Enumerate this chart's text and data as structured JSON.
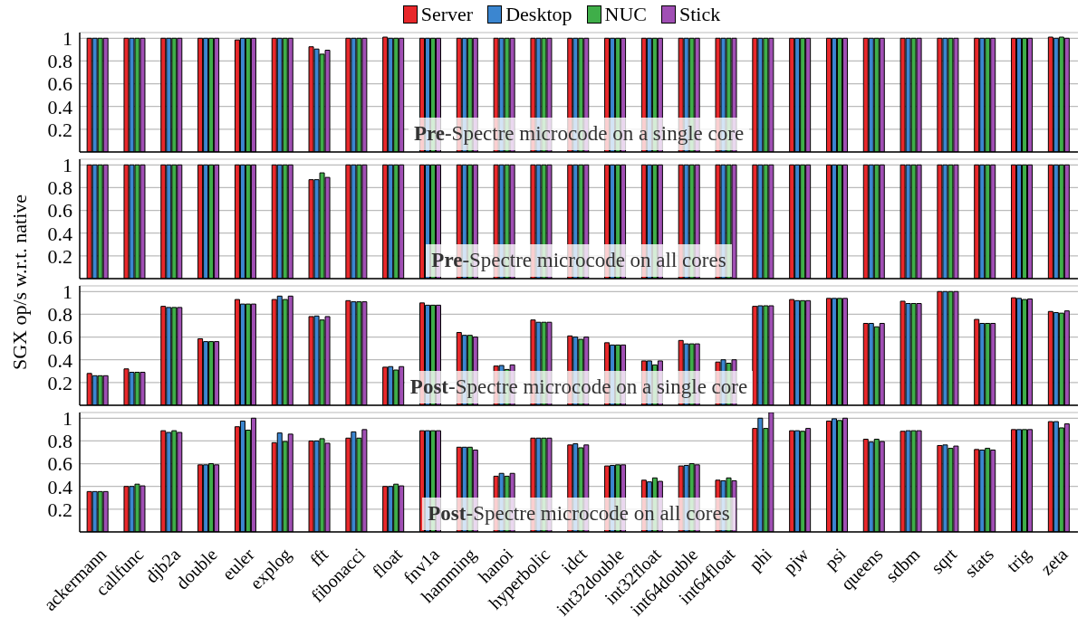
{
  "chart_data": [
    {
      "type": "bar",
      "title": "Pre-Spectre microcode on a single core",
      "ylabel": "SGX op/s w.r.t. native",
      "legend": "top",
      "grid": "y",
      "tick_labels": "y",
      "ylim": [
        0,
        1.05
      ],
      "yticks": [
        0.2,
        0.4,
        0.6,
        0.8,
        1
      ],
      "series": [
        {
          "name": "Server",
          "color": "#e8282b",
          "values": [
            1,
            1,
            1,
            1,
            0.985,
            1,
            0.925,
            1,
            1.01,
            1,
            1,
            1,
            1,
            1,
            1,
            1,
            1,
            1,
            1,
            1,
            1,
            1,
            1,
            1,
            1,
            1,
            1.01
          ]
        },
        {
          "name": "Desktop",
          "color": "#3b86d0",
          "values": [
            1,
            1,
            1,
            1,
            1,
            1,
            0.905,
            1,
            1,
            1,
            1,
            1,
            1,
            1,
            1,
            1,
            1,
            1,
            1,
            1,
            1,
            1,
            1,
            1,
            1,
            1,
            1
          ]
        },
        {
          "name": "NUC",
          "color": "#3fae49",
          "values": [
            1,
            1,
            1,
            1,
            1,
            1,
            0.86,
            1,
            1,
            1,
            1,
            1,
            1,
            1,
            1,
            1,
            1,
            1,
            1,
            1,
            1,
            1,
            1,
            1,
            1,
            1,
            1.01
          ]
        },
        {
          "name": "Stick",
          "color": "#a04fb4",
          "values": [
            1,
            1,
            1,
            1,
            1,
            1,
            0.895,
            1,
            1,
            1,
            1,
            1,
            1,
            1,
            1,
            1,
            1,
            1,
            1,
            1,
            1,
            1,
            1,
            1,
            1,
            1,
            1
          ]
        }
      ]
    },
    {
      "type": "bar",
      "title": "Pre-Spectre microcode on all cores",
      "grid": "y",
      "tick_labels": "y",
      "ylim": [
        0,
        1.05
      ],
      "yticks": [
        0.2,
        0.4,
        0.6,
        0.8,
        1
      ],
      "series": [
        {
          "color": "#e8282b",
          "values": [
            1,
            1,
            1,
            1,
            1,
            1,
            0.87,
            1,
            1,
            1,
            1,
            1,
            1,
            1,
            1,
            1,
            1,
            1,
            1,
            1,
            1,
            1,
            1,
            1,
            1,
            1,
            1
          ]
        },
        {
          "color": "#3b86d0",
          "values": [
            1,
            1,
            1,
            1,
            1,
            1,
            0.87,
            1,
            1,
            1,
            1,
            1,
            1,
            1,
            1,
            1,
            1,
            1,
            1,
            1,
            1,
            1,
            1,
            1,
            1,
            1,
            1
          ]
        },
        {
          "color": "#3fae49",
          "values": [
            1,
            1,
            1,
            1,
            1,
            1,
            0.93,
            1,
            1,
            1,
            1,
            1,
            1,
            1,
            1,
            1,
            1,
            1,
            1,
            1,
            1,
            1,
            1,
            1,
            1,
            1,
            1
          ]
        },
        {
          "color": "#a04fb4",
          "values": [
            1,
            1,
            1,
            1,
            1,
            1,
            0.89,
            1,
            1,
            1,
            1,
            1,
            1,
            1,
            1,
            1,
            1,
            1,
            1,
            1,
            1,
            1,
            1,
            1,
            1,
            1,
            1
          ]
        }
      ]
    },
    {
      "type": "bar",
      "title": "Post-Spectre microcode on a single core",
      "grid": "y",
      "tick_labels": "y",
      "ylim": [
        0,
        1.05
      ],
      "yticks": [
        0.2,
        0.4,
        0.6,
        0.8,
        1
      ],
      "series": [
        {
          "color": "#e8282b",
          "values": [
            0.28,
            0.32,
            0.87,
            0.585,
            0.93,
            0.93,
            0.78,
            0.92,
            0.335,
            0.9,
            0.64,
            0.345,
            0.75,
            0.61,
            0.55,
            0.39,
            0.57,
            0.38,
            0.87,
            0.93,
            0.94,
            0.72,
            0.915,
            1,
            0.755,
            0.945,
            0.825
          ]
        },
        {
          "color": "#3b86d0",
          "values": [
            0.26,
            0.29,
            0.86,
            0.56,
            0.89,
            0.96,
            0.785,
            0.91,
            0.34,
            0.88,
            0.615,
            0.35,
            0.73,
            0.6,
            0.53,
            0.39,
            0.54,
            0.4,
            0.875,
            0.92,
            0.94,
            0.72,
            0.895,
            1,
            0.72,
            0.94,
            0.815
          ]
        },
        {
          "color": "#3fae49",
          "values": [
            0.26,
            0.29,
            0.86,
            0.56,
            0.89,
            0.93,
            0.75,
            0.91,
            0.31,
            0.88,
            0.615,
            0.315,
            0.73,
            0.58,
            0.53,
            0.355,
            0.54,
            0.37,
            0.875,
            0.92,
            0.94,
            0.69,
            0.895,
            1,
            0.72,
            0.93,
            0.81
          ]
        },
        {
          "color": "#a04fb4",
          "values": [
            0.26,
            0.29,
            0.86,
            0.56,
            0.89,
            0.96,
            0.78,
            0.91,
            0.34,
            0.88,
            0.6,
            0.355,
            0.73,
            0.6,
            0.53,
            0.39,
            0.54,
            0.4,
            0.875,
            0.92,
            0.94,
            0.72,
            0.895,
            1,
            0.72,
            0.935,
            0.83
          ]
        }
      ]
    },
    {
      "type": "bar",
      "title": "Post-Spectre microcode on all cores",
      "grid": "y",
      "categories": [
        "ackermann",
        "callfunc",
        "djb2a",
        "double",
        "euler",
        "explog",
        "fft",
        "fibonacci",
        "float",
        "fnv1a",
        "hamming",
        "hanoi",
        "hyperbolic",
        "idct",
        "int32double",
        "int32float",
        "int64double",
        "int64float",
        "phi",
        "pjw",
        "psi",
        "queens",
        "sdbm",
        "sqrt",
        "stats",
        "trig",
        "zeta"
      ],
      "ylim": [
        0,
        1.05
      ],
      "yticks": [
        0.2,
        0.4,
        0.6,
        0.8,
        1
      ],
      "series": [
        {
          "color": "#e8282b",
          "values": [
            0.355,
            0.4,
            0.89,
            0.59,
            0.925,
            0.785,
            0.8,
            0.825,
            0.4,
            0.89,
            0.745,
            0.49,
            0.825,
            0.765,
            0.58,
            0.455,
            0.58,
            0.455,
            0.91,
            0.89,
            0.975,
            0.815,
            0.885,
            0.76,
            0.725,
            0.9,
            0.97
          ]
        },
        {
          "color": "#3b86d0",
          "values": [
            0.355,
            0.4,
            0.875,
            0.59,
            0.975,
            0.87,
            0.8,
            0.88,
            0.4,
            0.89,
            0.745,
            0.515,
            0.825,
            0.775,
            0.585,
            0.44,
            0.585,
            0.45,
            1,
            0.89,
            0.995,
            0.79,
            0.89,
            0.765,
            0.72,
            0.9,
            0.97
          ]
        },
        {
          "color": "#3fae49",
          "values": [
            0.355,
            0.42,
            0.89,
            0.6,
            0.895,
            0.795,
            0.82,
            0.825,
            0.42,
            0.89,
            0.745,
            0.49,
            0.825,
            0.74,
            0.59,
            0.475,
            0.6,
            0.475,
            0.91,
            0.885,
            0.98,
            0.815,
            0.89,
            0.735,
            0.735,
            0.9,
            0.915
          ]
        },
        {
          "color": "#a04fb4",
          "values": [
            0.355,
            0.405,
            0.875,
            0.59,
            1,
            0.86,
            0.78,
            0.9,
            0.405,
            0.89,
            0.72,
            0.515,
            0.825,
            0.765,
            0.59,
            0.445,
            0.59,
            0.45,
            1.05,
            0.91,
            1,
            0.795,
            0.89,
            0.755,
            0.72,
            0.9,
            0.95
          ]
        }
      ]
    }
  ]
}
